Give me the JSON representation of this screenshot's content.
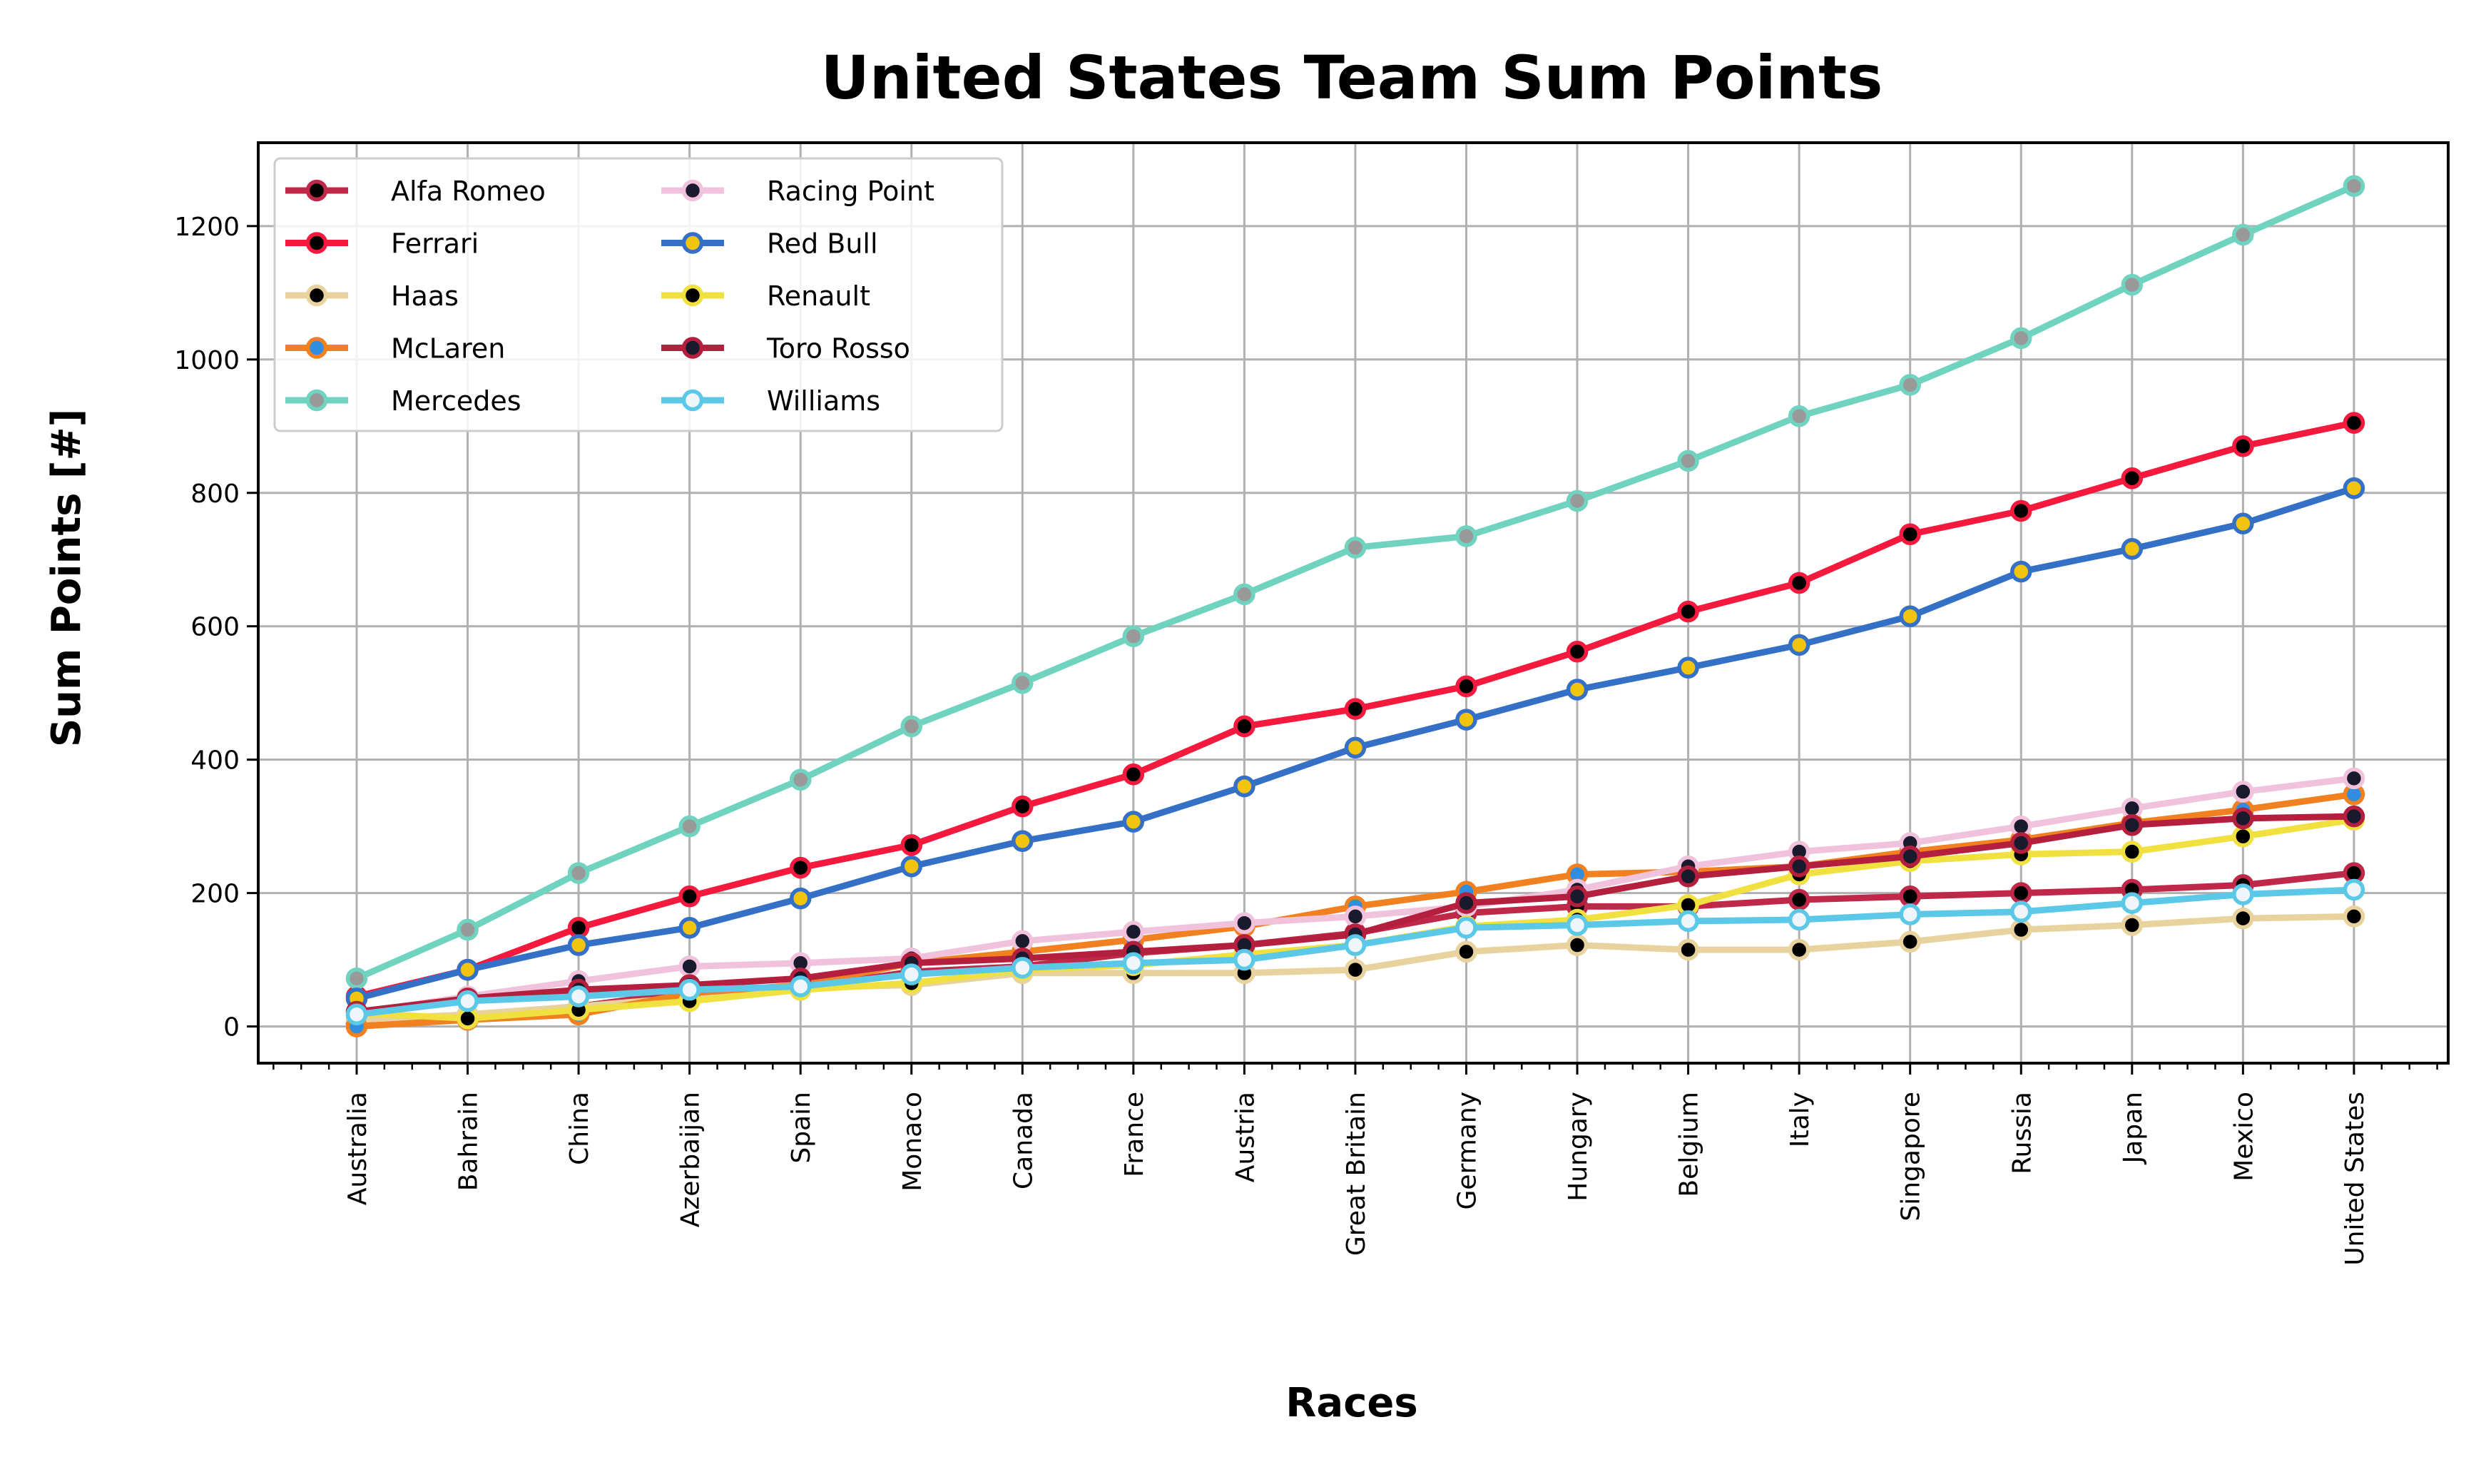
{
  "chart_data": {
    "type": "line",
    "title": "United States Team Sum Points",
    "xlabel": "Races",
    "ylabel": "Sum Points [#]",
    "ylim": [
      -55,
      1325
    ],
    "yticks": [
      0,
      200,
      400,
      600,
      800,
      1000,
      1200
    ],
    "grid": true,
    "legend_position": "top-left",
    "categories": [
      "Australia",
      "Bahrain",
      "China",
      "Azerbaijan",
      "Spain",
      "Monaco",
      "Canada",
      "France",
      "Austria",
      "Great Britain",
      "Germany",
      "Hungary",
      "Belgium",
      "Italy",
      "Singapore",
      "Russia",
      "Japan",
      "Mexico",
      "United States"
    ],
    "series": [
      {
        "name": "Alfa Romeo",
        "color": "#c0284a",
        "marker_face": "#000000",
        "marker_edge": "#c0284a",
        "values": [
          4,
          17,
          30,
          52,
          58,
          82,
          90,
          110,
          122,
          140,
          170,
          180,
          180,
          190,
          195,
          200,
          205,
          212,
          230
        ]
      },
      {
        "name": "Ferrari",
        "color": "#f5193d",
        "marker_face": "#000000",
        "marker_edge": "#f5193d",
        "values": [
          45,
          85,
          148,
          195,
          238,
          272,
          330,
          378,
          450,
          476,
          510,
          562,
          622,
          665,
          738,
          773,
          822,
          870,
          905
        ]
      },
      {
        "name": "Haas",
        "color": "#e8d39e",
        "marker_face": "#000000",
        "marker_edge": "#e8d39e",
        "values": [
          10,
          18,
          30,
          44,
          58,
          62,
          80,
          80,
          80,
          85,
          112,
          122,
          115,
          115,
          127,
          145,
          152,
          162,
          165
        ]
      },
      {
        "name": "McLaren",
        "color": "#f08020",
        "marker_face": "#2f8ee0",
        "marker_edge": "#f08020",
        "values": [
          0,
          10,
          18,
          50,
          62,
          95,
          112,
          130,
          150,
          180,
          202,
          228,
          232,
          240,
          262,
          280,
          305,
          325,
          348
        ]
      },
      {
        "name": "Mercedes",
        "color": "#6fd3bf",
        "marker_face": "#999999",
        "marker_edge": "#6fd3bf",
        "values": [
          72,
          145,
          230,
          300,
          370,
          450,
          515,
          585,
          648,
          718,
          735,
          788,
          848,
          915,
          962,
          1032,
          1112,
          1187,
          1260
        ]
      },
      {
        "name": "Racing Point",
        "color": "#f0c2dc",
        "marker_face": "#1a1a2e",
        "marker_edge": "#f0c2dc",
        "values": [
          20,
          45,
          68,
          90,
          95,
          102,
          128,
          142,
          155,
          165,
          180,
          205,
          240,
          262,
          275,
          300,
          327,
          352,
          372
        ]
      },
      {
        "name": "Red Bull",
        "color": "#3471c6",
        "marker_face": "#f2c40e",
        "marker_edge": "#3471c6",
        "values": [
          42,
          85,
          122,
          148,
          192,
          240,
          278,
          307,
          360,
          418,
          460,
          505,
          538,
          572,
          615,
          682,
          716,
          754,
          807
        ]
      },
      {
        "name": "Renault",
        "color": "#f0e040",
        "marker_face": "#000000",
        "marker_edge": "#f0e040",
        "values": [
          20,
          12,
          25,
          38,
          55,
          65,
          85,
          92,
          108,
          122,
          150,
          160,
          182,
          228,
          248,
          258,
          262,
          285,
          310
        ]
      },
      {
        "name": "Toro Rosso",
        "color": "#b51f3e",
        "marker_face": "#1a1a2e",
        "marker_edge": "#b51f3e",
        "values": [
          22,
          42,
          55,
          62,
          72,
          95,
          102,
          112,
          122,
          138,
          185,
          195,
          225,
          240,
          255,
          275,
          302,
          312,
          315
        ]
      },
      {
        "name": "Williams",
        "color": "#5bc8e8",
        "marker_face": "#eef6fb",
        "marker_edge": "#5bc8e8",
        "values": [
          18,
          38,
          45,
          55,
          60,
          78,
          88,
          95,
          100,
          122,
          148,
          152,
          158,
          160,
          168,
          172,
          185,
          198,
          205
        ]
      }
    ]
  }
}
